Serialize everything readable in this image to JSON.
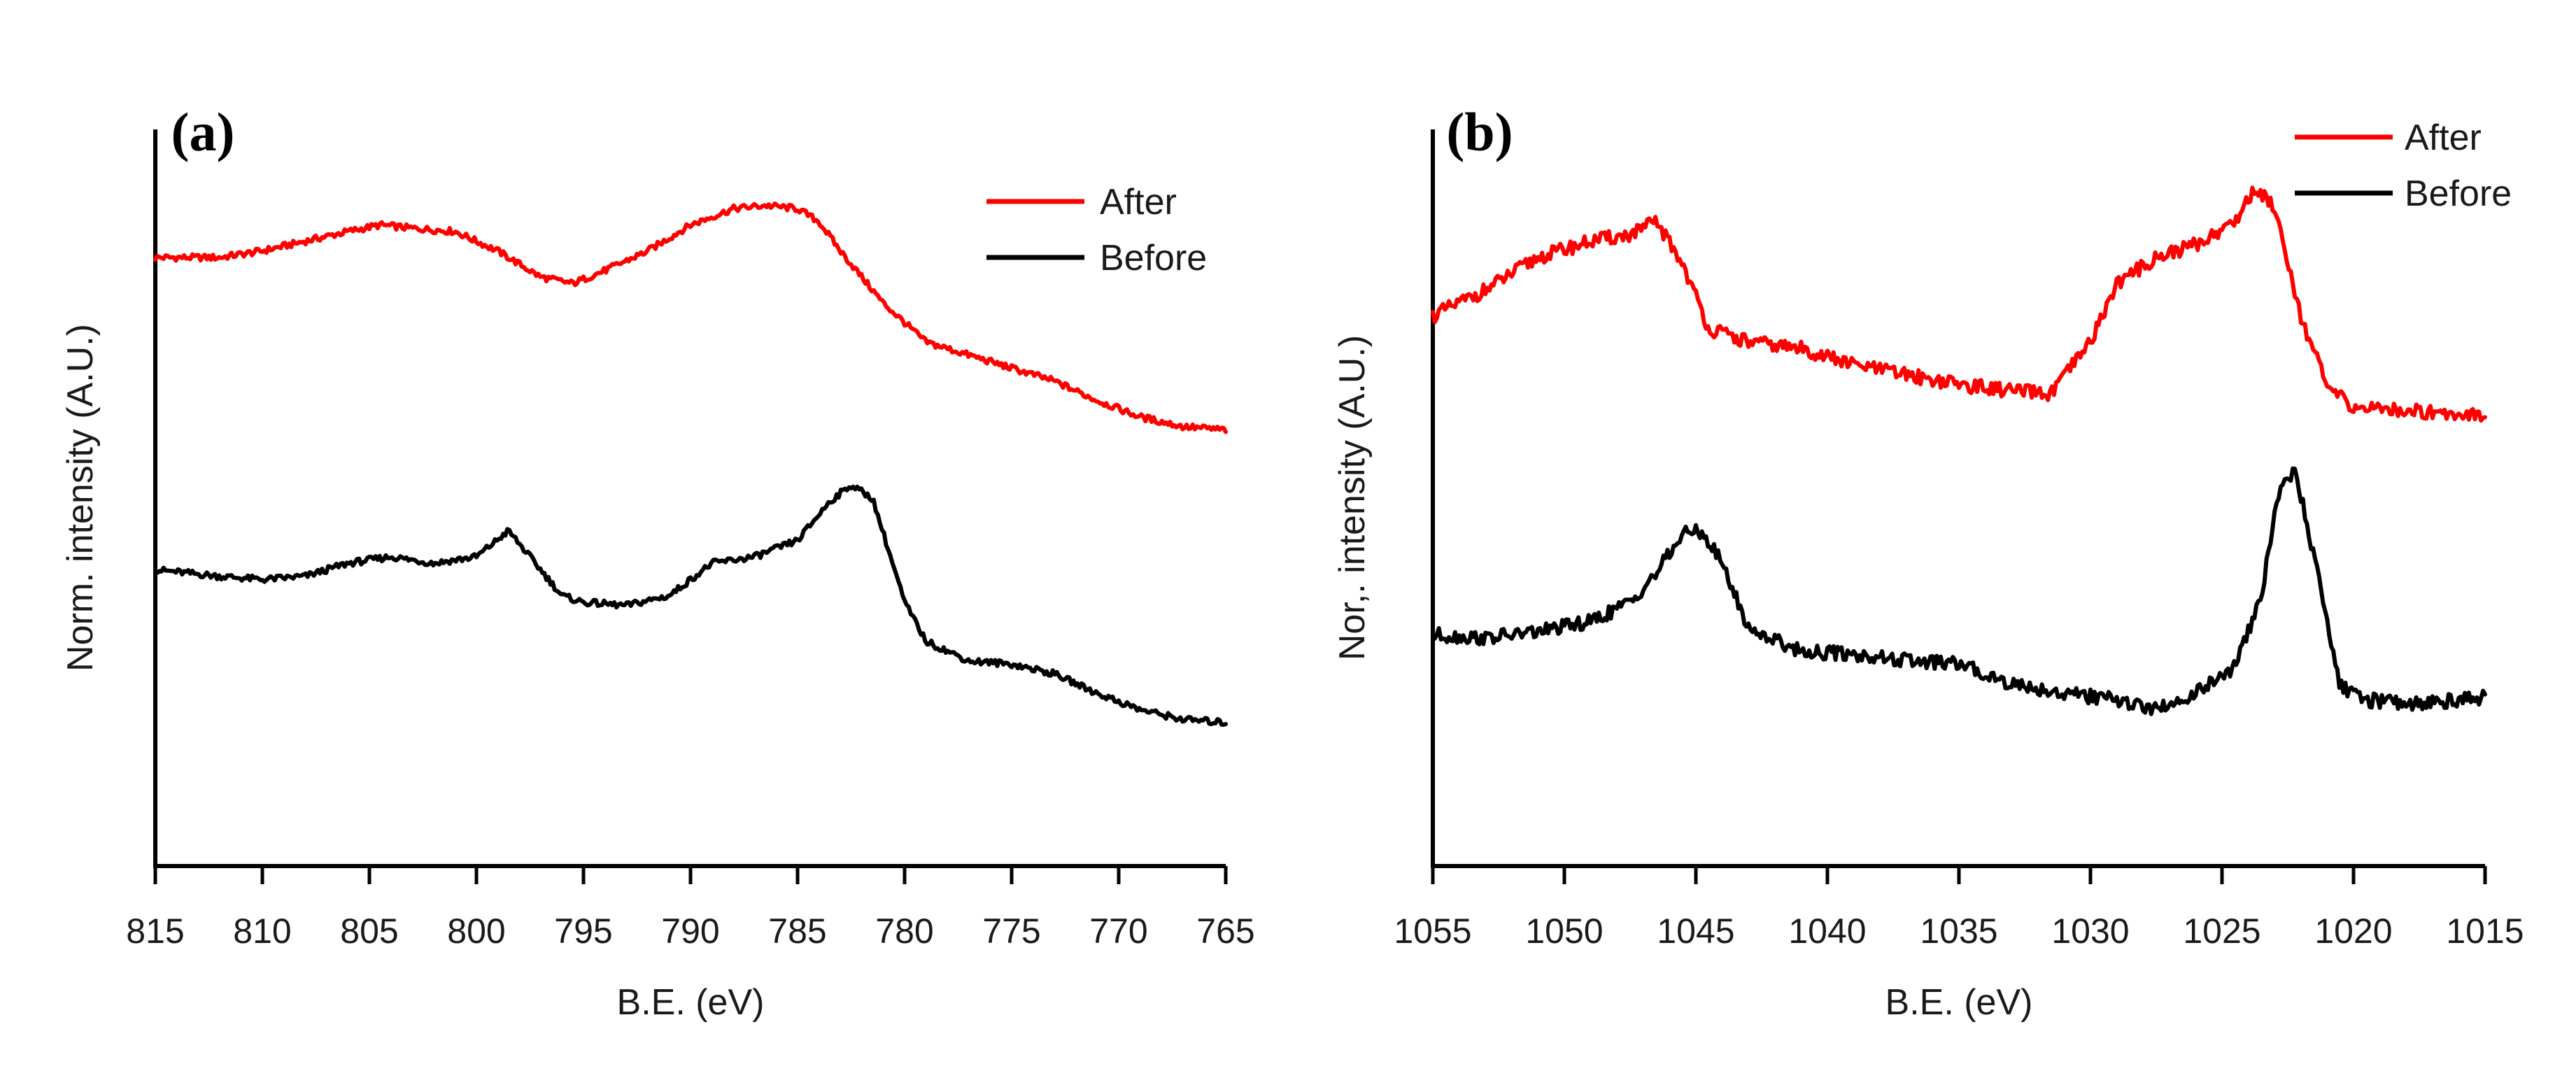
{
  "chart_data": [
    {
      "type": "line",
      "panel_label": "(a)",
      "xlabel": "B.E. (eV)",
      "ylabel": "Norm. intensity (A.U.)",
      "xlim": [
        815,
        765
      ],
      "ylim": [
        0,
        1
      ],
      "xticks": [
        815,
        810,
        805,
        800,
        795,
        790,
        785,
        780,
        775,
        770,
        765
      ],
      "legend_position": "top-right",
      "series": [
        {
          "name": "After",
          "color": "#ff0000",
          "x": [
            815,
            812,
            810,
            808,
            806,
            804.5,
            803,
            801,
            799,
            797,
            795.5,
            794,
            792,
            790,
            788,
            786.5,
            785,
            784,
            783,
            781,
            779,
            777,
            775,
            773,
            771,
            769,
            767,
            765
          ],
          "y": [
            0.83,
            0.83,
            0.84,
            0.855,
            0.87,
            0.88,
            0.875,
            0.87,
            0.84,
            0.8,
            0.79,
            0.81,
            0.84,
            0.88,
            0.905,
            0.91,
            0.905,
            0.885,
            0.84,
            0.76,
            0.7,
            0.68,
            0.66,
            0.64,
            0.61,
            0.585,
            0.57,
            0.565
          ]
        },
        {
          "name": "Before",
          "color": "#000000",
          "x": [
            815,
            812,
            810,
            808,
            806,
            804,
            802,
            800,
            798.5,
            797,
            796,
            795,
            793,
            791,
            789,
            787,
            785,
            783.5,
            782.5,
            781.5,
            780,
            779,
            777,
            775,
            773,
            771,
            769,
            767,
            765
          ],
          "y": [
            0.35,
            0.34,
            0.335,
            0.34,
            0.36,
            0.37,
            0.36,
            0.37,
            0.41,
            0.35,
            0.31,
            0.3,
            0.295,
            0.31,
            0.36,
            0.37,
            0.395,
            0.455,
            0.48,
            0.46,
            0.3,
            0.24,
            0.21,
            0.205,
            0.19,
            0.16,
            0.135,
            0.12,
            0.115
          ]
        }
      ]
    },
    {
      "type": "line",
      "panel_label": "(b)",
      "xlabel": "B.E. (eV)",
      "ylabel": "Nor,. intensity (A.U.)",
      "xlim": [
        1055,
        1015
      ],
      "ylim": [
        0,
        1
      ],
      "xticks": [
        1055,
        1050,
        1045,
        1040,
        1035,
        1030,
        1025,
        1020,
        1015
      ],
      "legend_position": "top-right",
      "series": [
        {
          "name": "After",
          "color": "#ff0000",
          "x": [
            1055,
            1053,
            1051,
            1049,
            1047.5,
            1046.5,
            1045.5,
            1044.5,
            1043,
            1041,
            1039,
            1037,
            1035,
            1033,
            1031.5,
            1030,
            1029,
            1027.5,
            1026,
            1024.5,
            1023.8,
            1023,
            1022,
            1021,
            1020,
            1018,
            1016,
            1015
          ],
          "y": [
            0.74,
            0.78,
            0.83,
            0.855,
            0.865,
            0.885,
            0.82,
            0.72,
            0.7,
            0.69,
            0.665,
            0.65,
            0.635,
            0.625,
            0.62,
            0.7,
            0.79,
            0.83,
            0.85,
            0.885,
            0.935,
            0.91,
            0.74,
            0.63,
            0.6,
            0.595,
            0.59,
            0.59
          ]
        },
        {
          "name": "Before",
          "color": "#000000",
          "x": [
            1055,
            1053,
            1051,
            1049,
            1047.5,
            1046.5,
            1045.5,
            1044.8,
            1044,
            1043,
            1041,
            1039,
            1037,
            1035,
            1033,
            1031,
            1029,
            1027.5,
            1026,
            1024.5,
            1023.5,
            1022.8,
            1022.2,
            1021.5,
            1020.5,
            1019.5,
            1018,
            1016,
            1015
          ],
          "y": [
            0.25,
            0.245,
            0.255,
            0.27,
            0.3,
            0.345,
            0.405,
            0.41,
            0.36,
            0.26,
            0.225,
            0.22,
            0.21,
            0.205,
            0.175,
            0.16,
            0.15,
            0.135,
            0.16,
            0.2,
            0.31,
            0.48,
            0.5,
            0.37,
            0.17,
            0.15,
            0.145,
            0.15,
            0.155
          ]
        }
      ]
    }
  ]
}
